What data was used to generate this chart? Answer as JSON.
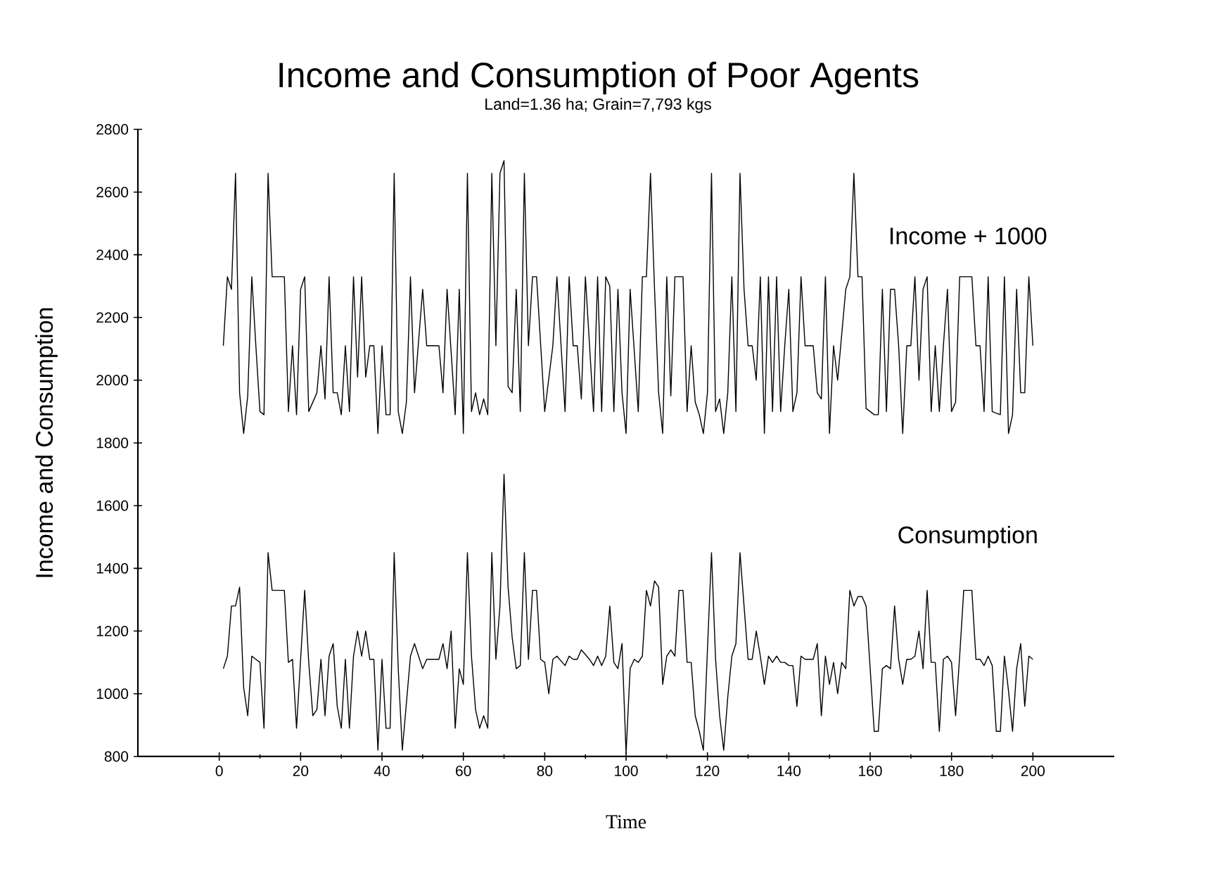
{
  "chart_data": {
    "type": "line",
    "title": "Income and Consumption of Poor Agents",
    "subtitle": "Land=1.36 ha; Grain=7,793 kgs",
    "xlabel": "Time",
    "ylabel": "Income and Consumption",
    "xlim": [
      -20,
      220
    ],
    "ylim": [
      800,
      2800
    ],
    "xticks": [
      0,
      20,
      40,
      60,
      80,
      100,
      120,
      140,
      160,
      180,
      200
    ],
    "yticks": [
      800,
      1000,
      1200,
      1400,
      1600,
      1800,
      2000,
      2200,
      2400,
      2600,
      2800
    ],
    "series": [
      {
        "name": "Income + 1000",
        "color": "#000000",
        "x": [
          1,
          2,
          3,
          4,
          5,
          6,
          7,
          8,
          9,
          10,
          11,
          12,
          13,
          16,
          17,
          18,
          19,
          20,
          21,
          22,
          24,
          25,
          26,
          27,
          28,
          29,
          30,
          31,
          32,
          33,
          34,
          35,
          36,
          37,
          38,
          39,
          40,
          41,
          42,
          43,
          44,
          45,
          46,
          47,
          48,
          50,
          51,
          54,
          55,
          56,
          58,
          59,
          60,
          61,
          62,
          63,
          64,
          65,
          66,
          67,
          68,
          69,
          70,
          71,
          72,
          73,
          74,
          75,
          76,
          77,
          78,
          80,
          82,
          83,
          85,
          86,
          87,
          88,
          89,
          90,
          92,
          93,
          94,
          95,
          96,
          97,
          98,
          99,
          100,
          101,
          103,
          104,
          105,
          106,
          107,
          108,
          109,
          110,
          111,
          112,
          114,
          115,
          116,
          117,
          118,
          119,
          120,
          121,
          122,
          123,
          124,
          125,
          126,
          127,
          128,
          129,
          130,
          131,
          132,
          133,
          134,
          135,
          136,
          137,
          138,
          139,
          140,
          141,
          142,
          143,
          144,
          146,
          147,
          148,
          149,
          150,
          151,
          152,
          154,
          155,
          156,
          157,
          158,
          159,
          161,
          162,
          163,
          164,
          165,
          166,
          167,
          168,
          169,
          170,
          171,
          172,
          173,
          174,
          175,
          176,
          177,
          178,
          179,
          180,
          181,
          182,
          184,
          185,
          186,
          187,
          188,
          189,
          190,
          192,
          193,
          194,
          195,
          196,
          197,
          198,
          199,
          200
        ],
        "values": [
          2110,
          2330,
          2290,
          2660,
          1960,
          1830,
          1950,
          2330,
          2110,
          1900,
          1890,
          2660,
          2330,
          2330,
          1900,
          2110,
          1890,
          2290,
          2330,
          1900,
          1960,
          2110,
          1940,
          2330,
          1960,
          1960,
          1890,
          2110,
          1900,
          2330,
          2010,
          2330,
          2010,
          2110,
          2110,
          1830,
          2110,
          1890,
          1890,
          2660,
          1900,
          1830,
          1930,
          2330,
          1960,
          2290,
          2110,
          2110,
          1960,
          2290,
          1890,
          2290,
          1830,
          2660,
          1900,
          1960,
          1890,
          1940,
          1890,
          2660,
          2110,
          2660,
          2700,
          1980,
          1960,
          2290,
          1900,
          2660,
          2110,
          2330,
          2330,
          1900,
          2110,
          2330,
          1900,
          2330,
          2110,
          2110,
          1940,
          2330,
          1900,
          2330,
          1900,
          2330,
          2300,
          1900,
          2290,
          1960,
          1830,
          2290,
          1900,
          2330,
          2330,
          2660,
          2290,
          1960,
          1830,
          2330,
          1950,
          2330,
          2330,
          1900,
          2110,
          1930,
          1890,
          1830,
          1960,
          2660,
          1900,
          1940,
          1830,
          1960,
          2330,
          1900,
          2660,
          2290,
          2110,
          2110,
          2000,
          2330,
          1830,
          2330,
          1900,
          2330,
          1900,
          2110,
          2290,
          1900,
          1960,
          2330,
          2110,
          2110,
          1960,
          1940,
          2330,
          1830,
          2110,
          2000,
          2290,
          2330,
          2660,
          2330,
          2330,
          1910,
          1890,
          1890,
          2290,
          1900,
          2290,
          2290,
          2110,
          1830,
          2110,
          2110,
          2330,
          2000,
          2290,
          2330,
          1900,
          2110,
          1900,
          2110,
          2290,
          1900,
          1930,
          2330,
          2330,
          2330,
          2110,
          2110,
          1900,
          2330,
          1900,
          1890,
          2330,
          1830,
          1890,
          2290,
          1960,
          1960,
          2330,
          2110
        ]
      },
      {
        "name": "Consumption",
        "color": "#000000",
        "x": [
          1,
          2,
          3,
          4,
          5,
          6,
          7,
          8,
          9,
          10,
          11,
          12,
          13,
          16,
          17,
          18,
          19,
          21,
          22,
          23,
          24,
          25,
          26,
          27,
          28,
          29,
          30,
          31,
          32,
          33,
          34,
          35,
          36,
          37,
          38,
          39,
          40,
          41,
          42,
          43,
          44,
          45,
          47,
          48,
          50,
          51,
          54,
          55,
          56,
          57,
          58,
          59,
          60,
          61,
          62,
          63,
          64,
          65,
          66,
          67,
          68,
          69,
          70,
          71,
          72,
          73,
          74,
          75,
          76,
          77,
          78,
          79,
          80,
          81,
          82,
          83,
          85,
          86,
          87,
          88,
          89,
          91,
          92,
          93,
          94,
          95,
          96,
          97,
          98,
          99,
          100,
          101,
          102,
          103,
          104,
          105,
          106,
          107,
          108,
          109,
          110,
          111,
          112,
          113,
          114,
          115,
          116,
          117,
          118,
          119,
          120,
          121,
          122,
          123,
          124,
          125,
          126,
          127,
          128,
          129,
          130,
          131,
          132,
          133,
          134,
          135,
          136,
          137,
          138,
          139,
          140,
          141,
          142,
          143,
          144,
          146,
          147,
          148,
          149,
          150,
          151,
          152,
          153,
          154,
          155,
          156,
          157,
          158,
          159,
          161,
          162,
          163,
          164,
          165,
          166,
          167,
          168,
          169,
          170,
          171,
          172,
          173,
          174,
          175,
          176,
          177,
          178,
          179,
          180,
          181,
          182,
          183,
          185,
          186,
          187,
          188,
          189,
          190,
          191,
          192,
          193,
          194,
          195,
          196,
          197,
          198,
          199,
          200
        ],
        "values": [
          1080,
          1120,
          1280,
          1280,
          1340,
          1020,
          930,
          1120,
          1110,
          1100,
          890,
          1450,
          1330,
          1330,
          1100,
          1110,
          890,
          1330,
          1100,
          930,
          950,
          1110,
          930,
          1120,
          1160,
          960,
          890,
          1110,
          890,
          1120,
          1200,
          1120,
          1200,
          1110,
          1110,
          820,
          1110,
          890,
          890,
          1450,
          1080,
          820,
          1120,
          1160,
          1080,
          1110,
          1110,
          1160,
          1080,
          1200,
          890,
          1080,
          1030,
          1450,
          1120,
          950,
          890,
          930,
          890,
          1450,
          1110,
          1280,
          1700,
          1340,
          1180,
          1080,
          1090,
          1450,
          1110,
          1330,
          1330,
          1110,
          1100,
          1000,
          1110,
          1120,
          1090,
          1120,
          1110,
          1110,
          1140,
          1110,
          1090,
          1120,
          1090,
          1120,
          1280,
          1100,
          1080,
          1160,
          810,
          1080,
          1110,
          1100,
          1120,
          1330,
          1280,
          1360,
          1340,
          1030,
          1120,
          1140,
          1120,
          1330,
          1330,
          1100,
          1100,
          930,
          880,
          820,
          1140,
          1450,
          1110,
          930,
          820,
          990,
          1120,
          1160,
          1450,
          1280,
          1110,
          1110,
          1200,
          1120,
          1030,
          1120,
          1100,
          1120,
          1100,
          1100,
          1090,
          1090,
          960,
          1120,
          1110,
          1110,
          1160,
          930,
          1120,
          1030,
          1100,
          1000,
          1100,
          1080,
          1330,
          1280,
          1310,
          1310,
          1280,
          880,
          880,
          1080,
          1090,
          1080,
          1280,
          1110,
          1030,
          1110,
          1110,
          1120,
          1200,
          1080,
          1330,
          1100,
          1100,
          880,
          1110,
          1120,
          1100,
          930,
          1120,
          1330,
          1330,
          1110,
          1110,
          1090,
          1120,
          1090,
          880,
          880,
          1120,
          1010,
          880,
          1080,
          1160,
          960,
          1120,
          1110
        ]
      }
    ]
  }
}
